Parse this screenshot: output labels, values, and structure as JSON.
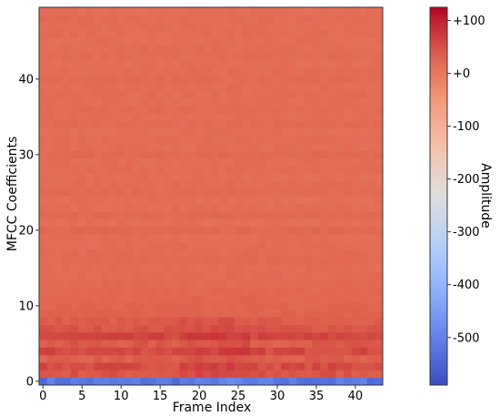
{
  "chart_data": {
    "type": "heatmap",
    "title": "",
    "xlabel": "Frame Index",
    "ylabel": "MFCC Coefficients",
    "n_frames": 44,
    "n_coefficients": 50,
    "xlim": [
      -0.5,
      43.5
    ],
    "ylim": [
      -0.5,
      49.5
    ],
    "x_ticks": [
      0,
      5,
      10,
      15,
      20,
      25,
      30,
      35,
      40
    ],
    "y_ticks": [
      0,
      10,
      20,
      30,
      40
    ],
    "colormap": "coolwarm",
    "colorbar": {
      "label": "Amplitude",
      "vmin": -590,
      "vmax": 125,
      "ticks": [
        {
          "value": 100,
          "label": "+100"
        },
        {
          "value": 0,
          "label": "+0"
        },
        {
          "value": -100,
          "label": "-100"
        },
        {
          "value": -200,
          "label": "-200"
        },
        {
          "value": -300,
          "label": "-300"
        },
        {
          "value": -400,
          "label": "-400"
        },
        {
          "value": -500,
          "label": "-500"
        }
      ]
    },
    "row_values": [
      -520,
      45,
      55,
      35,
      58,
      40,
      60,
      45,
      38,
      30,
      28,
      26,
      24,
      22,
      20,
      18,
      22,
      20,
      18,
      16,
      24,
      14,
      22,
      16,
      14,
      20,
      18,
      15,
      17,
      16,
      22,
      15,
      18,
      14,
      20,
      16,
      18,
      15,
      17,
      16,
      20,
      17,
      14,
      18,
      16,
      15,
      17,
      16,
      18,
      15
    ],
    "row_variation": [
      25,
      12,
      12,
      10,
      12,
      10,
      10,
      8,
      8,
      6,
      5,
      5,
      5,
      5,
      5,
      5,
      5,
      5,
      5,
      5,
      5,
      5,
      5,
      5,
      5,
      5,
      5,
      5,
      5,
      5,
      5,
      5,
      5,
      5,
      5,
      5,
      5,
      5,
      5,
      5,
      5,
      5,
      5,
      5,
      5,
      5,
      5,
      5,
      5,
      5
    ]
  }
}
